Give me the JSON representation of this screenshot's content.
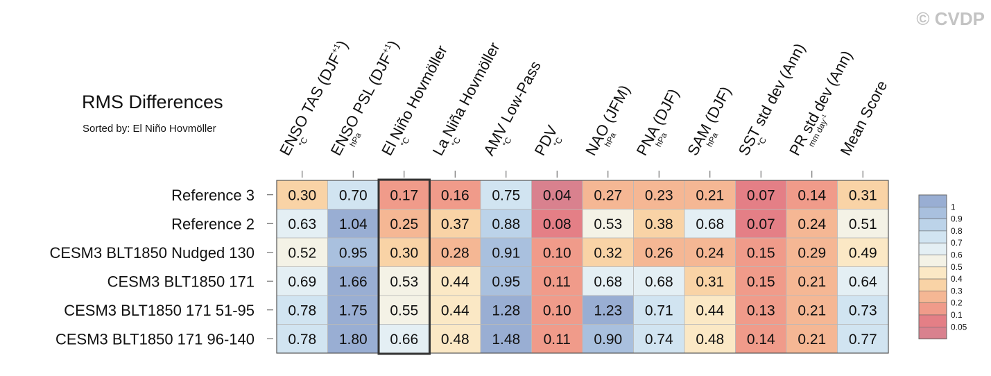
{
  "watermark": "© CVDP",
  "chart_data": {
    "type": "heatmap",
    "title": "RMS Differences",
    "subtitle": "Sorted by: El Niño Hovmöller",
    "highlight_column": "El Niño Hovmöller",
    "columns": [
      {
        "label": "ENSO TAS (DJF",
        "sup": "+1",
        "close": ")",
        "unit": "°C"
      },
      {
        "label": "ENSO PSL (DJF",
        "sup": "+1",
        "close": ")",
        "unit": "hPa"
      },
      {
        "label": "El Niño Hovmöller",
        "sup": "",
        "close": "",
        "unit": "°C"
      },
      {
        "label": "La Niña Hovmöller",
        "sup": "",
        "close": "",
        "unit": "°C"
      },
      {
        "label": "AMV Low-Pass",
        "sup": "",
        "close": "",
        "unit": "°C"
      },
      {
        "label": "PDV",
        "sup": "",
        "close": "",
        "unit": "°C"
      },
      {
        "label": "NAO (JFM)",
        "sup": "",
        "close": "",
        "unit": "hPa"
      },
      {
        "label": "PNA (DJF)",
        "sup": "",
        "close": "",
        "unit": "hPa"
      },
      {
        "label": "SAM (DJF)",
        "sup": "",
        "close": "",
        "unit": "hPa"
      },
      {
        "label": "SST std dev (Ann)",
        "sup": "",
        "close": "",
        "unit": "°C"
      },
      {
        "label": "PR std dev (Ann)",
        "sup": "",
        "close": "",
        "unit": "mm day",
        "unit_sup": "-1"
      },
      {
        "label": "Mean Score",
        "sup": "",
        "close": "",
        "unit": ""
      }
    ],
    "rows": [
      {
        "label": "Reference 3",
        "values": [
          "0.30",
          "0.70",
          "0.17",
          "0.16",
          "0.75",
          "0.04",
          "0.27",
          "0.23",
          "0.21",
          "0.07",
          "0.14",
          "0.31"
        ]
      },
      {
        "label": "Reference 2",
        "values": [
          "0.63",
          "1.04",
          "0.25",
          "0.37",
          "0.88",
          "0.08",
          "0.53",
          "0.38",
          "0.68",
          "0.07",
          "0.24",
          "0.51"
        ]
      },
      {
        "label": "CESM3 BLT1850 Nudged 130",
        "values": [
          "0.52",
          "0.95",
          "0.30",
          "0.28",
          "0.91",
          "0.10",
          "0.32",
          "0.26",
          "0.24",
          "0.15",
          "0.29",
          "0.49"
        ]
      },
      {
        "label": "CESM3 BLT1850 171",
        "values": [
          "0.69",
          "1.66",
          "0.53",
          "0.44",
          "0.95",
          "0.11",
          "0.68",
          "0.68",
          "0.31",
          "0.15",
          "0.21",
          "0.64"
        ]
      },
      {
        "label": "CESM3 BLT1850 171 51-95",
        "values": [
          "0.78",
          "1.75",
          "0.55",
          "0.44",
          "1.28",
          "0.10",
          "1.23",
          "0.71",
          "0.44",
          "0.13",
          "0.21",
          "0.73"
        ]
      },
      {
        "label": "CESM3 BLT1850 171 96-140",
        "values": [
          "0.78",
          "1.80",
          "0.66",
          "0.48",
          "1.48",
          "0.11",
          "0.90",
          "0.74",
          "0.48",
          "0.14",
          "0.21",
          "0.77"
        ]
      }
    ],
    "colorbar": {
      "labels": [
        "1",
        "0.9",
        "0.8",
        "0.7",
        "0.6",
        "0.5",
        "0.4",
        "0.3",
        "0.2",
        "0.1",
        "0.05"
      ],
      "colors": [
        "#99aed3",
        "#a9c0de",
        "#bcd3e9",
        "#d1e4f1",
        "#e4eff4",
        "#f4f2e6",
        "#fbe8c5",
        "#f9d3a6",
        "#f5b794",
        "#f09b8a",
        "#e47f86",
        "#d9818e"
      ]
    }
  }
}
